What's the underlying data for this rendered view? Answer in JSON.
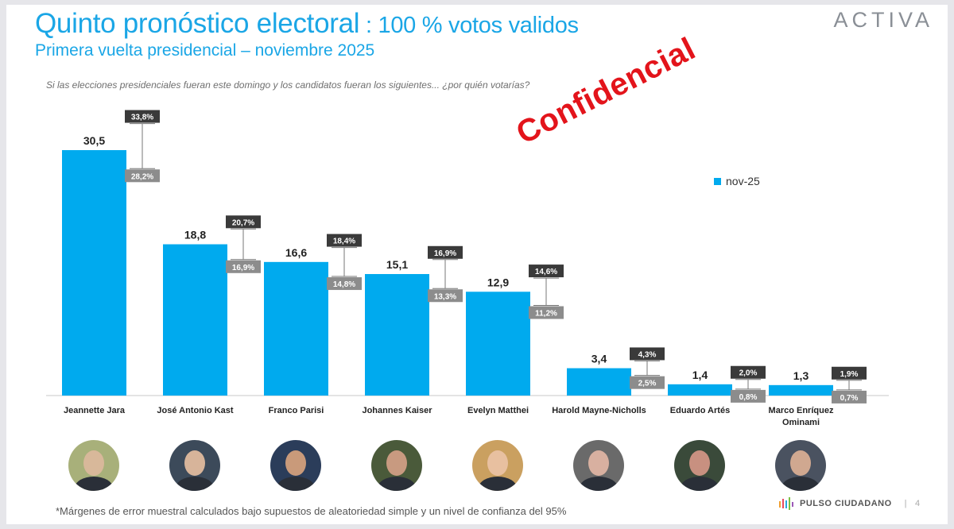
{
  "header": {
    "title_main": "Quinto pronóstico electoral",
    "title_sub": " : 100 % votos validos",
    "subtitle": "Primera vuelta presidencial – noviembre 2025",
    "brand": "ACTIVA"
  },
  "question": "Si las elecciones presidenciales fueran este domingo y los candidatos fueran los siguientes... ¿por quién votarías?",
  "stamp": "Confidencial",
  "footnote": "*Márgenes de error muestral calculados bajo supuestos de aleatoriedad simple y un nivel de confianza del 95%",
  "footer": {
    "brand": "PULSO CIUDADANO",
    "page": "4"
  },
  "colors": {
    "bar": "#00aaee",
    "title": "#1aa6e6",
    "stamp": "#e3141b",
    "upper_box": "#3a3a3a",
    "lower_box": "#8c8c8c"
  },
  "photos": [
    {
      "icon": "jeannette-jara-photo"
    },
    {
      "icon": "jose-antonio-kast-photo"
    },
    {
      "icon": "franco-parisi-photo"
    },
    {
      "icon": "johannes-kaiser-photo"
    },
    {
      "icon": "evelyn-matthei-photo"
    },
    {
      "icon": "harold-mayne-nicholls-photo"
    },
    {
      "icon": "eduardo-artes-photo"
    },
    {
      "icon": "marco-enriquez-ominami-photo"
    }
  ],
  "chart_data": {
    "type": "bar",
    "categories": [
      [
        "Jeannette Jara"
      ],
      [
        "José Antonio Kast"
      ],
      [
        "Franco Parisi"
      ],
      [
        "Johannes Kaiser"
      ],
      [
        "Evelyn Matthei"
      ],
      [
        "Harold Mayne-Nicholls"
      ],
      [
        "Eduardo Artés"
      ],
      [
        "Marco Enríquez",
        "Ominami"
      ]
    ],
    "series": [
      {
        "name": "nov-25",
        "values": [
          30.5,
          18.8,
          16.6,
          15.1,
          12.9,
          3.4,
          1.4,
          1.3
        ],
        "labels": [
          "30,5",
          "18,8",
          "16,6",
          "15,1",
          "12,9",
          "3,4",
          "1,4",
          "1,3"
        ]
      }
    ],
    "upper": [
      33.8,
      20.7,
      18.4,
      16.9,
      14.6,
      4.3,
      2.0,
      1.9
    ],
    "upper_labels": [
      "33,8%",
      "20,7%",
      "18,4%",
      "16,9%",
      "14,6%",
      "4,3%",
      "2,0%",
      "1,9%"
    ],
    "lower": [
      28.2,
      16.9,
      14.8,
      13.3,
      11.2,
      2.5,
      0.8,
      0.7
    ],
    "lower_labels": [
      "28,2%",
      "16,9%",
      "14,8%",
      "13,3%",
      "11,2%",
      "2,5%",
      "0,8%",
      "0,7%"
    ],
    "ylim": [
      0,
      33
    ],
    "legend": "top-right",
    "grid": false
  }
}
